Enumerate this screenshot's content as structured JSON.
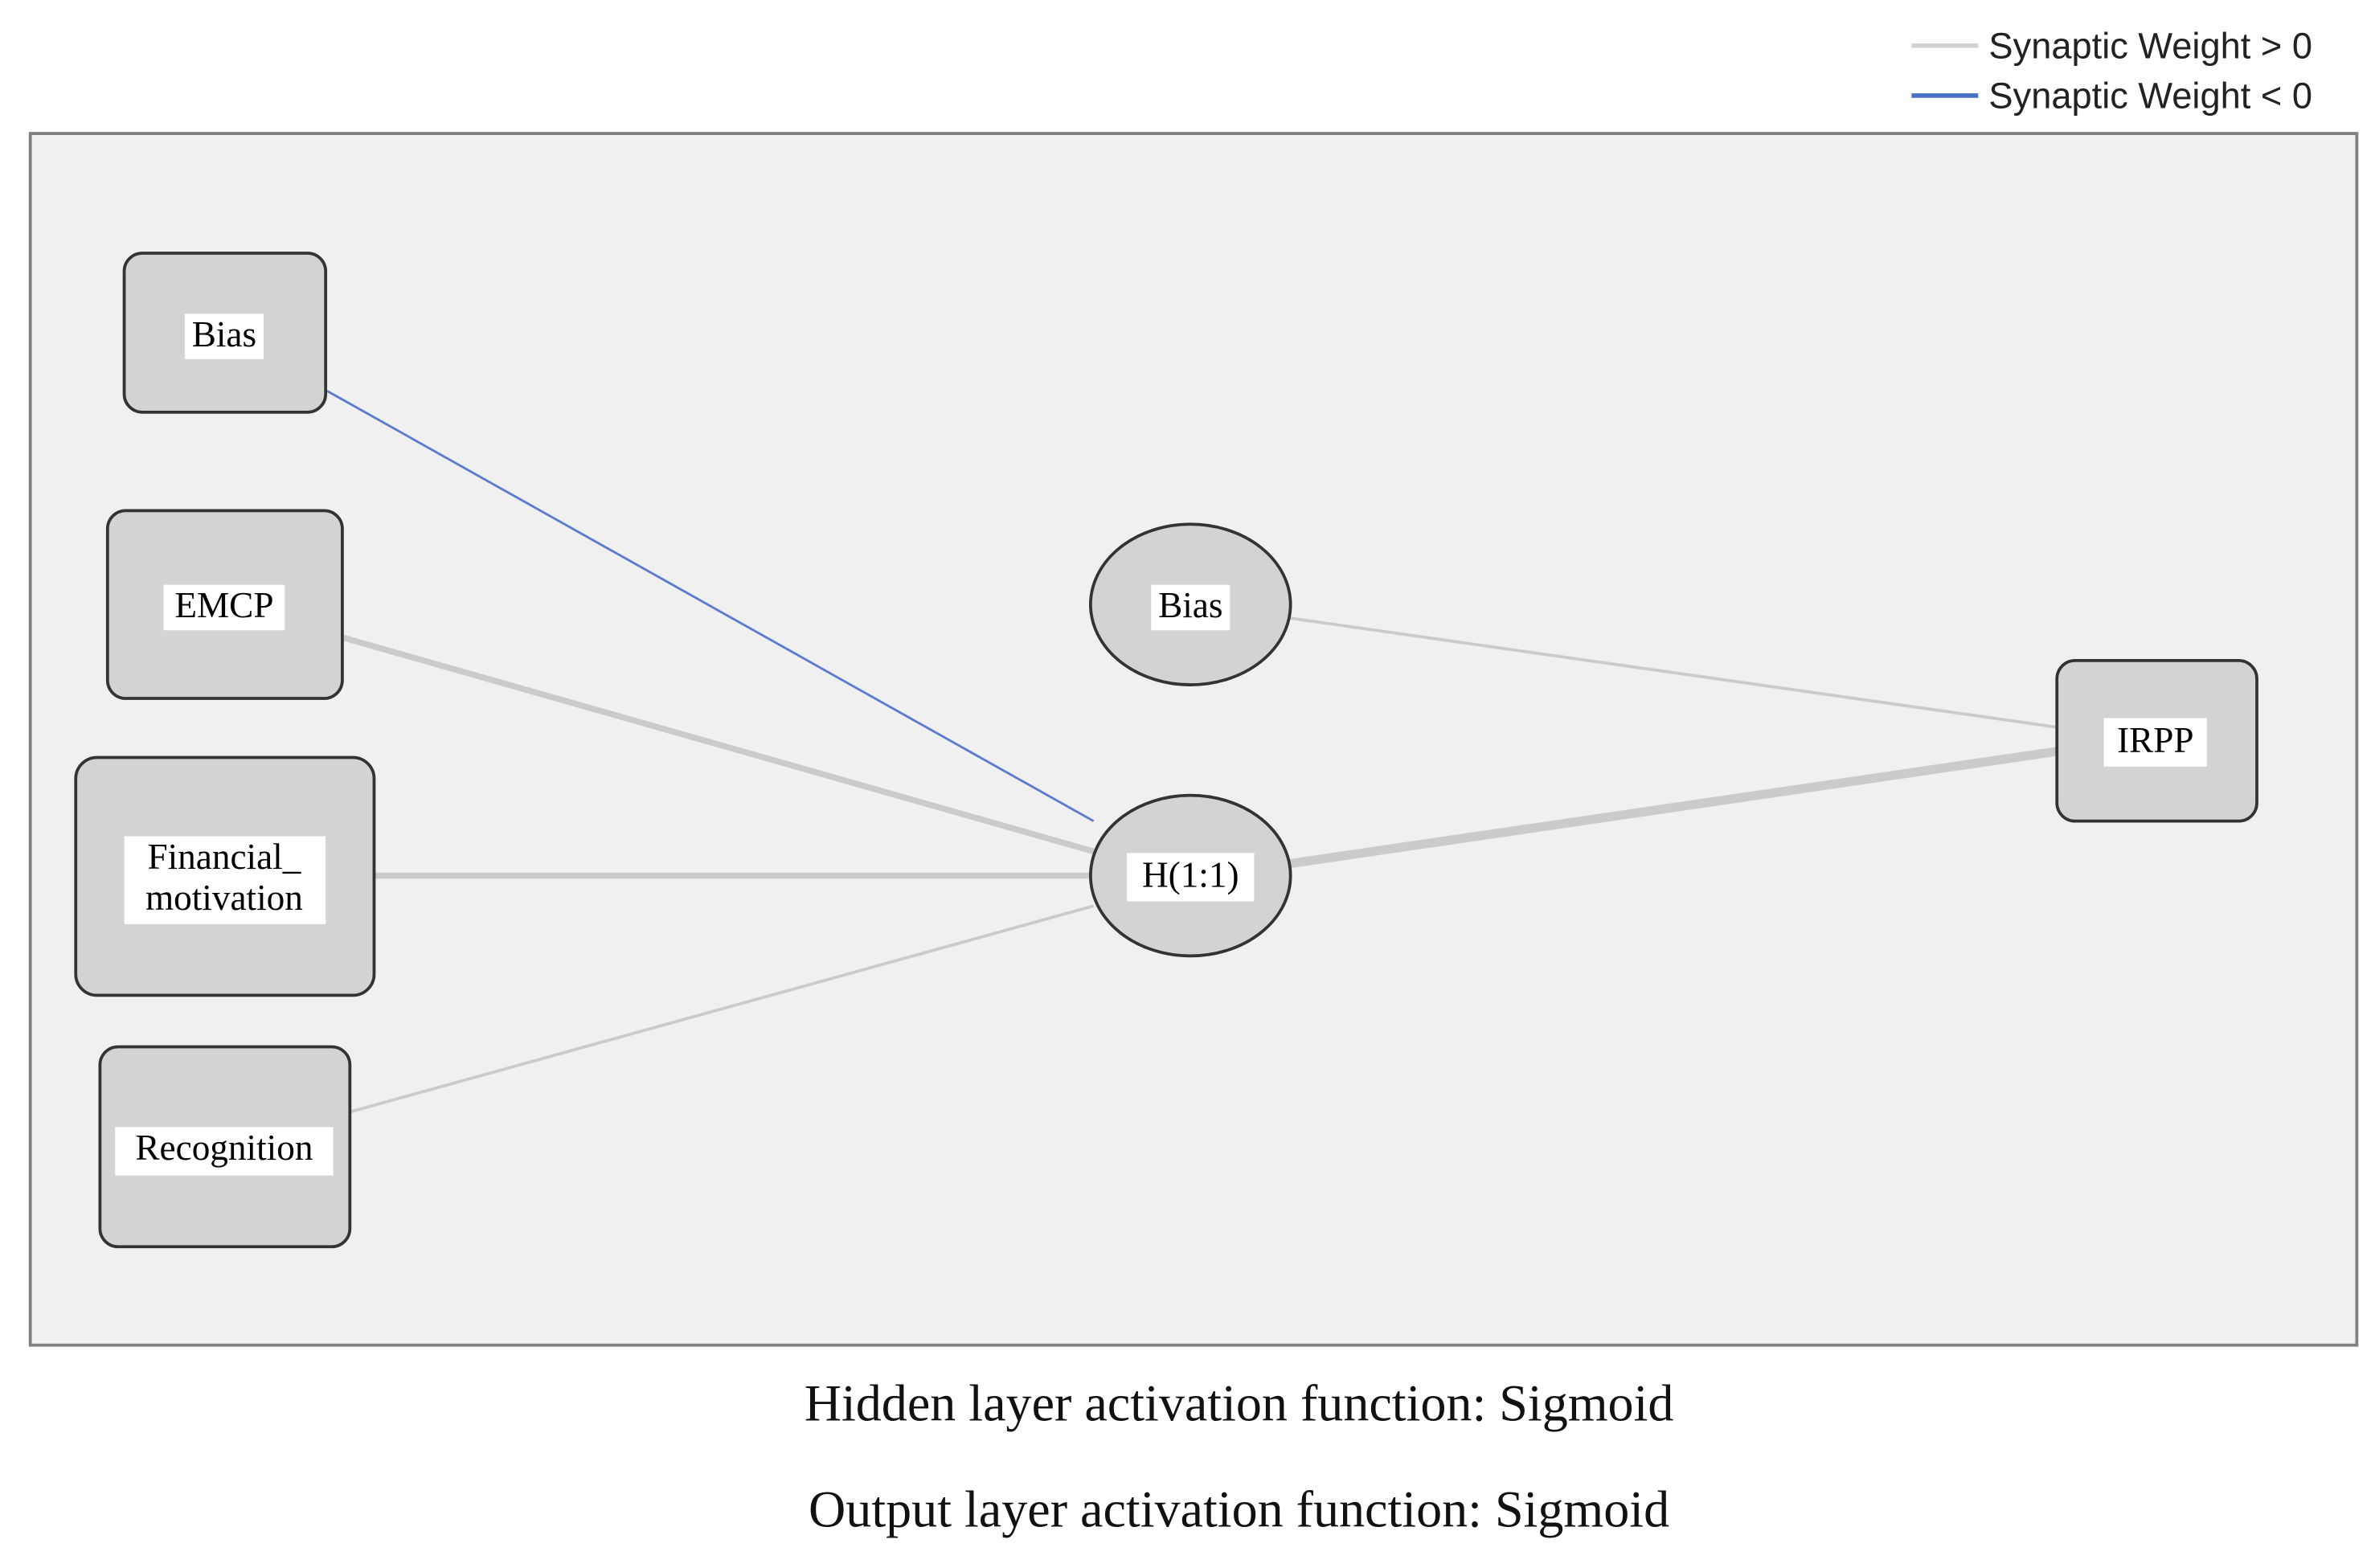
{
  "legend": [
    "Synaptic Weight > 0",
    "Synaptic Weight < 0"
  ],
  "input_layer": {
    "nodes": [
      "Bias",
      "EMCP",
      [
        "Financial_",
        "motivation"
      ],
      "Recognition"
    ]
  },
  "hidden_layer": {
    "nodes": [
      "Bias",
      "H(1:1)"
    ]
  },
  "output_layer": {
    "nodes": [
      "IRPP"
    ]
  },
  "footer": [
    "Hidden layer activation function: Sigmoid",
    "Output layer activation function: Sigmoid"
  ]
}
